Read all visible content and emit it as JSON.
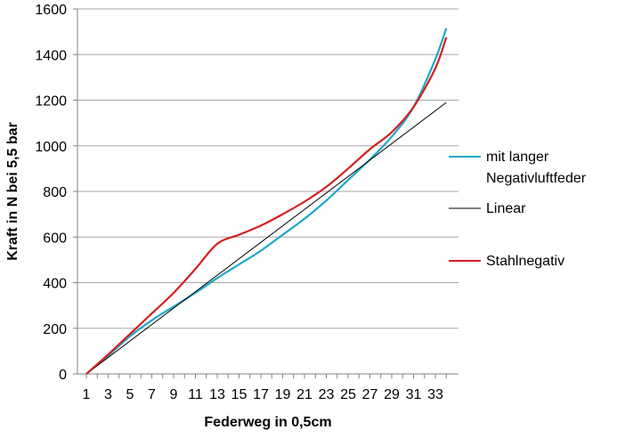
{
  "chart_data": {
    "type": "line",
    "xlabel": "Federweg in 0,5cm",
    "ylabel": "Kraft in N bei 5,5 bar",
    "ylim": [
      0,
      1600
    ],
    "yticks": [
      0,
      200,
      400,
      600,
      800,
      1000,
      1200,
      1400,
      1600
    ],
    "xlim": [
      1,
      34
    ],
    "xticks": [
      1,
      3,
      5,
      7,
      9,
      11,
      13,
      15,
      17,
      19,
      21,
      23,
      25,
      27,
      29,
      31,
      33
    ],
    "grid": "horizontal",
    "legend_position": "right",
    "series": [
      {
        "name": "mit langer Negativluftfeder",
        "color": "#1fa8c9",
        "points": [
          [
            1,
            0
          ],
          [
            3,
            80
          ],
          [
            5,
            165
          ],
          [
            7,
            235
          ],
          [
            9,
            295
          ],
          [
            11,
            355
          ],
          [
            13,
            420
          ],
          [
            15,
            480
          ],
          [
            17,
            540
          ],
          [
            19,
            610
          ],
          [
            21,
            680
          ],
          [
            23,
            760
          ],
          [
            25,
            850
          ],
          [
            27,
            940
          ],
          [
            29,
            1040
          ],
          [
            31,
            1170
          ],
          [
            33,
            1380
          ],
          [
            34,
            1515
          ]
        ]
      },
      {
        "name": "Linear",
        "color": "#000000",
        "points": [
          [
            1,
            0
          ],
          [
            34,
            1190
          ]
        ]
      },
      {
        "name": "Stahlnegativ",
        "color": "#d42020",
        "points": [
          [
            1,
            0
          ],
          [
            3,
            85
          ],
          [
            5,
            175
          ],
          [
            7,
            265
          ],
          [
            9,
            355
          ],
          [
            11,
            460
          ],
          [
            13,
            570
          ],
          [
            15,
            610
          ],
          [
            17,
            650
          ],
          [
            19,
            700
          ],
          [
            21,
            755
          ],
          [
            23,
            820
          ],
          [
            25,
            900
          ],
          [
            27,
            985
          ],
          [
            29,
            1060
          ],
          [
            31,
            1170
          ],
          [
            33,
            1340
          ],
          [
            34,
            1475
          ]
        ]
      }
    ]
  }
}
